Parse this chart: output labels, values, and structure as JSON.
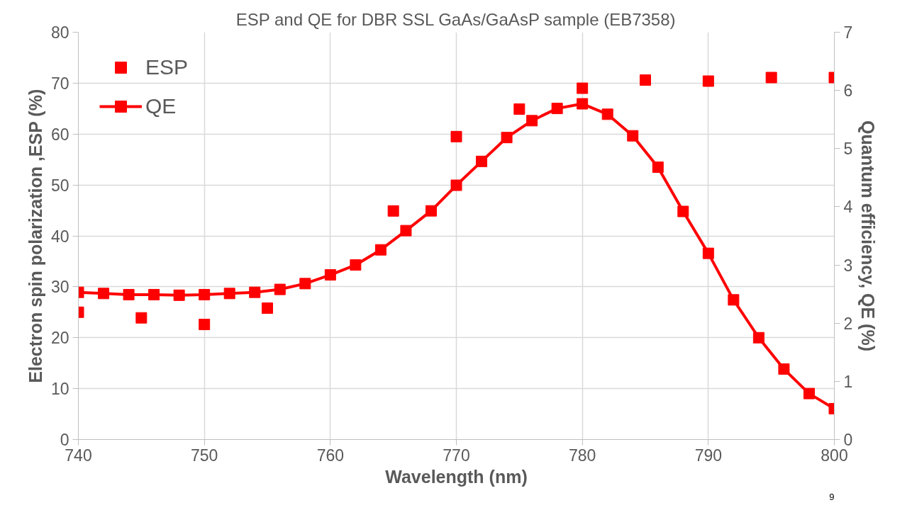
{
  "chart_data": {
    "type": "scatter",
    "title": "ESP and QE for DBR SSL GaAs/GaAsP sample (EB7358)",
    "xlabel": "Wavelength (nm)",
    "ylabel": "Electron spin polarization ,ESP (%)",
    "y2label": "Quantum efficiency, QE (%)",
    "xlim": [
      740,
      800
    ],
    "xticks": [
      740,
      750,
      760,
      770,
      780,
      790,
      800
    ],
    "ylim": [
      0,
      80
    ],
    "yticks": [
      0,
      10,
      20,
      30,
      40,
      50,
      60,
      70,
      80
    ],
    "y2lim": [
      0,
      7
    ],
    "y2ticks": [
      0,
      1,
      2,
      3,
      4,
      5,
      6,
      7
    ],
    "grid": true,
    "legend": "top left",
    "marker": "square",
    "annotations": [
      "9"
    ],
    "series": [
      {
        "name": "ESP",
        "color": "#ff0000",
        "x": [
          740,
          745,
          750,
          755,
          765,
          770,
          775,
          780,
          785,
          790,
          795,
          800
        ],
        "values": [
          25.0,
          23.9,
          22.6,
          25.8,
          44.9,
          59.5,
          64.9,
          69.0,
          70.6,
          70.4,
          71.1,
          71.1
        ]
      },
      {
        "name": "QE",
        "type": "line",
        "axis": "y2",
        "color": "#ff0000",
        "x": [
          740,
          742,
          744,
          746,
          748,
          750,
          752,
          754,
          756,
          758,
          760,
          762,
          764,
          766,
          768,
          770,
          772,
          774,
          776,
          778,
          780,
          782,
          784,
          786,
          788,
          790,
          792,
          794,
          796,
          798,
          800
        ],
        "values": [
          2.53,
          2.51,
          2.49,
          2.49,
          2.48,
          2.49,
          2.51,
          2.53,
          2.58,
          2.68,
          2.83,
          3.0,
          3.26,
          3.59,
          3.93,
          4.37,
          4.78,
          5.19,
          5.48,
          5.69,
          5.77,
          5.59,
          5.22,
          4.68,
          3.92,
          3.2,
          2.4,
          1.75,
          1.21,
          0.79,
          0.53
        ]
      }
    ]
  }
}
